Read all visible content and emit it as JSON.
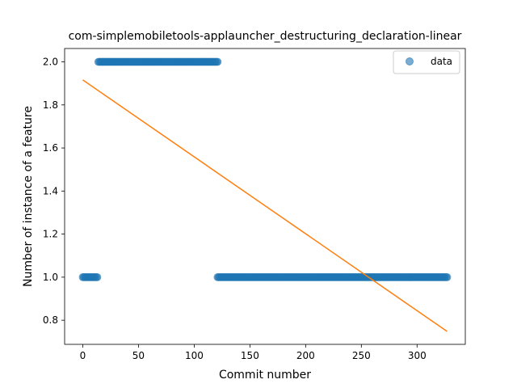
{
  "chart_data": {
    "type": "scatter",
    "title": "com-simplemobiletools-applauncher_destructuring_declaration-linear",
    "xlabel": "Commit number",
    "ylabel": "Number of instance of a feature",
    "xlim": [
      -16.3,
      343.3
    ],
    "ylim": [
      0.688,
      2.062
    ],
    "xticks": [
      0,
      50,
      100,
      150,
      200,
      250,
      300
    ],
    "yticks": [
      0.8,
      1.0,
      1.2,
      1.4,
      1.6,
      1.8,
      2.0
    ],
    "ytick_labels": [
      "0.8",
      "1.0",
      "1.2",
      "1.4",
      "1.6",
      "1.8",
      "2.0"
    ],
    "legend": {
      "position": "top-right",
      "entries": [
        "data"
      ]
    },
    "colors": {
      "data": "#1f77b4",
      "fit": "#ff7f0e"
    },
    "series": [
      {
        "name": "data",
        "kind": "points",
        "segments": [
          {
            "x_start": 0,
            "x_end": 13,
            "y": 1.0
          },
          {
            "x_start": 14,
            "x_end": 121,
            "y": 2.0
          },
          {
            "x_start": 121,
            "x_end": 327,
            "y": 1.0
          }
        ]
      },
      {
        "kind": "line",
        "x": [
          0,
          327
        ],
        "y": [
          1.916,
          0.748
        ]
      }
    ]
  }
}
